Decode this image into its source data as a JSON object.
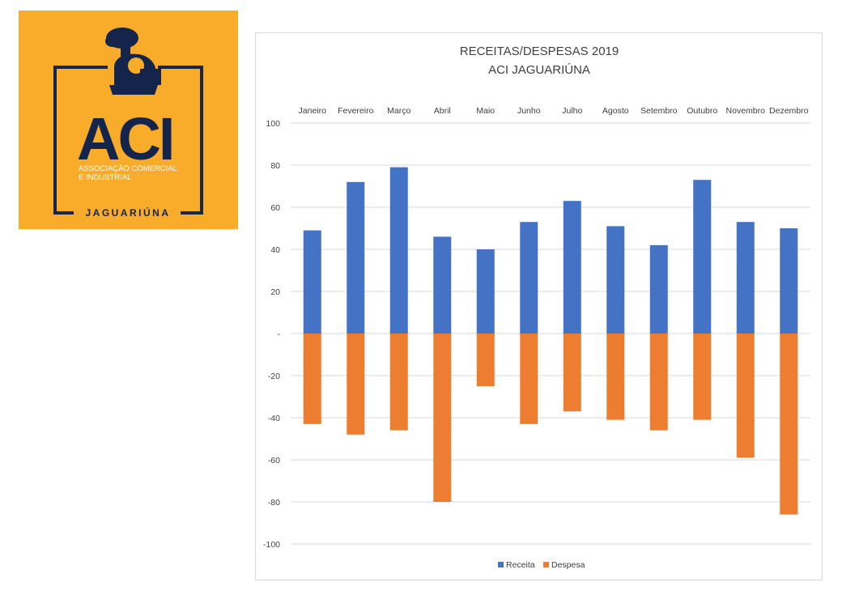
{
  "logo": {
    "brand": "ACI",
    "line1": "ASSOCIAÇÃO COMERCIAL",
    "line2": "E  INDUSTRIAL",
    "city": "JAGUARIÚNA",
    "icon": "locomotive-icon",
    "bg_color": "#f9ac29",
    "ink_color": "#14244a"
  },
  "chart_data": {
    "type": "bar",
    "title": "RECEITAS/DESPESAS 2019",
    "subtitle": "ACI JAGUARIÚNA",
    "categories": [
      "Janeiro",
      "Fevereiro",
      "Março",
      "Abril",
      "Maio",
      "Junho",
      "Julho",
      "Agosto",
      "Setembro",
      "Outubro",
      "Novembro",
      "Dezembro"
    ],
    "series": [
      {
        "name": "Receita",
        "color": "#4472c4",
        "values": [
          49,
          72,
          79,
          46,
          40,
          53,
          63,
          51,
          42,
          73,
          53,
          50
        ]
      },
      {
        "name": "Despesa",
        "color": "#ed7d31",
        "values": [
          -43,
          -48,
          -46,
          -80,
          -25,
          -43,
          -37,
          -41,
          -46,
          -41,
          -59,
          -86
        ]
      }
    ],
    "yticks": [
      {
        "v": 100,
        "label": "100"
      },
      {
        "v": 80,
        "label": "80"
      },
      {
        "v": 60,
        "label": "60"
      },
      {
        "v": 40,
        "label": "40"
      },
      {
        "v": 20,
        "label": "20"
      },
      {
        "v": 0,
        "label": "-"
      },
      {
        "v": -20,
        "label": "-20"
      },
      {
        "v": -40,
        "label": "-40"
      },
      {
        "v": -60,
        "label": "-60"
      },
      {
        "v": -80,
        "label": "-80"
      },
      {
        "v": -100,
        "label": "-100"
      }
    ],
    "ylim": [
      -100,
      100
    ],
    "stacked": true,
    "grid": true,
    "legend": "bottom",
    "category_labels": "top"
  }
}
